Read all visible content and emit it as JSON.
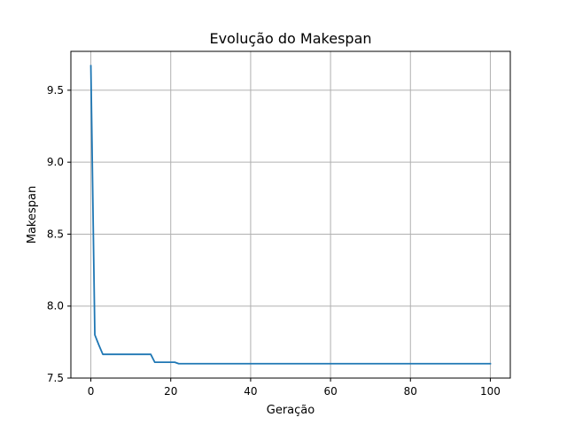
{
  "chart_data": {
    "type": "line",
    "title": "Evolução do Makespan",
    "xlabel": "Geração",
    "ylabel": "Makespan",
    "xlim": [
      -5,
      105
    ],
    "ylim": [
      7.5,
      9.77
    ],
    "x_ticks": [
      0,
      20,
      40,
      60,
      80,
      100
    ],
    "y_ticks": [
      7.5,
      8.0,
      8.5,
      9.0,
      9.5
    ],
    "x_tick_labels": [
      "0",
      "20",
      "40",
      "60",
      "80",
      "100"
    ],
    "y_tick_labels": [
      "7.5",
      "8.0",
      "8.5",
      "9.0",
      "9.5"
    ],
    "grid": true,
    "series": [
      {
        "color": "#1f77b4",
        "x": [
          0,
          1,
          2,
          3,
          4,
          5,
          6,
          7,
          8,
          9,
          10,
          11,
          12,
          13,
          14,
          15,
          16,
          17,
          18,
          19,
          20,
          21,
          22,
          23,
          24,
          25,
          26,
          27,
          28,
          29,
          30,
          31,
          32,
          33,
          34,
          35,
          36,
          37,
          38,
          39,
          40,
          41,
          42,
          43,
          44,
          45,
          46,
          47,
          48,
          49,
          50,
          51,
          52,
          53,
          54,
          55,
          56,
          57,
          58,
          59,
          60,
          61,
          62,
          63,
          64,
          65,
          66,
          67,
          68,
          69,
          70,
          71,
          72,
          73,
          74,
          75,
          76,
          77,
          78,
          79,
          80,
          81,
          82,
          83,
          84,
          85,
          86,
          87,
          88,
          89,
          90,
          91,
          92,
          93,
          94,
          95,
          96,
          97,
          98,
          99,
          100
        ],
        "y": [
          9.67,
          7.8,
          7.73,
          7.665,
          7.665,
          7.665,
          7.665,
          7.665,
          7.665,
          7.665,
          7.665,
          7.665,
          7.665,
          7.665,
          7.665,
          7.665,
          7.61,
          7.61,
          7.61,
          7.61,
          7.61,
          7.61,
          7.6,
          7.6,
          7.6,
          7.6,
          7.6,
          7.6,
          7.6,
          7.6,
          7.6,
          7.6,
          7.6,
          7.6,
          7.6,
          7.6,
          7.6,
          7.6,
          7.6,
          7.6,
          7.6,
          7.6,
          7.6,
          7.6,
          7.6,
          7.6,
          7.6,
          7.6,
          7.6,
          7.6,
          7.6,
          7.6,
          7.6,
          7.6,
          7.6,
          7.6,
          7.6,
          7.6,
          7.6,
          7.6,
          7.6,
          7.6,
          7.6,
          7.6,
          7.6,
          7.6,
          7.6,
          7.6,
          7.6,
          7.6,
          7.6,
          7.6,
          7.6,
          7.6,
          7.6,
          7.6,
          7.6,
          7.6,
          7.6,
          7.6,
          7.6,
          7.6,
          7.6,
          7.6,
          7.6,
          7.6,
          7.6,
          7.6,
          7.6,
          7.6,
          7.6,
          7.6,
          7.6,
          7.6,
          7.6,
          7.6,
          7.6,
          7.6,
          7.6,
          7.6,
          7.6
        ]
      }
    ]
  }
}
